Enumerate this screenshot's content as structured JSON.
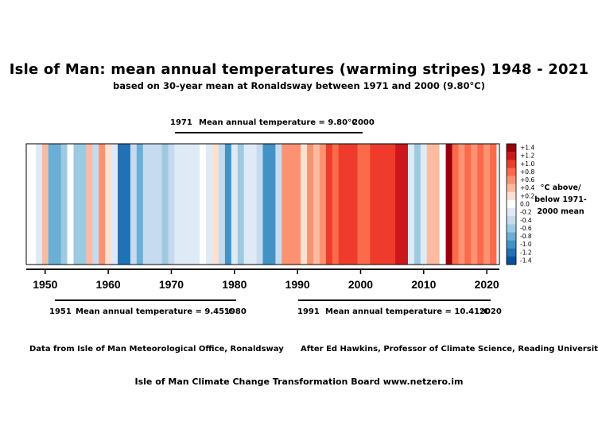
{
  "title": "Isle of Man: mean annual temperatures (warming stripes) 1948 - 2021",
  "subtitle": "based on 30-year mean at Ronaldsway between 1971 and 2000 (9.80°C)",
  "periods": [
    {
      "start": "1971",
      "label": "Mean annual temperature = 9.80°C",
      "end": "2000"
    },
    {
      "start": "1951",
      "label": "Mean annual temperature = 9.45°C",
      "end": "1980"
    },
    {
      "start": "1991",
      "label": "Mean annual temperature = 10.41°C",
      "end": "2020"
    }
  ],
  "footer": {
    "source": "Data from Isle of Man Meteorological Office, Ronaldsway",
    "credit": "After Ed Hawkins, Professor of Climate Science, Reading University",
    "board": "Isle of Man Climate Change Transformation Board     www.netzero.im"
  },
  "legend": {
    "caption": "°C above/ below 1971-2000 mean",
    "ticks": [
      "+1.4",
      "+1.2",
      "+1.0",
      "+0.8",
      "+0.6",
      "+0.4",
      "+0.2",
      "0.0",
      "-0.2",
      "-0.4",
      "-0.6",
      "-0.8",
      "-1.0",
      "-1.2",
      "-1.4"
    ],
    "colors": [
      "#99000d",
      "#cb181d",
      "#ef3b2c",
      "#fb6a4a",
      "#fc9272",
      "#fcbba1",
      "#fee0d2",
      "#ffffff",
      "#deebf7",
      "#c6dbef",
      "#9ecae1",
      "#6baed6",
      "#4292c6",
      "#2171b5",
      "#08519c"
    ]
  },
  "chart_data": {
    "type": "heatmap",
    "title": "Isle of Man: mean annual temperatures (warming stripes) 1948 - 2021",
    "xlabel": "",
    "ylabel": "",
    "x_ticks": [
      1950,
      1960,
      1970,
      1980,
      1990,
      2000,
      2010,
      2020
    ],
    "xlim": [
      1947,
      2022
    ],
    "color_scale": [
      -1.4,
      1.4
    ],
    "series": [
      {
        "years": [
          1948,
          1949,
          1950,
          1951,
          1952,
          1953,
          1954,
          1955,
          1956,
          1957,
          1958,
          1959,
          1960,
          1961,
          1962,
          1963,
          1964,
          1965,
          1966,
          1967,
          1968,
          1969,
          1970,
          1971,
          1972,
          1973,
          1974,
          1975,
          1976,
          1977,
          1978,
          1979,
          1980,
          1981,
          1982,
          1983,
          1984,
          1985,
          1986,
          1987,
          1988,
          1989,
          1990,
          1991,
          1992,
          1993,
          1994,
          1995,
          1996,
          1997,
          1998,
          1999,
          2000,
          2001,
          2002,
          2003,
          2004,
          2005,
          2006,
          2007,
          2008,
          2009,
          2010,
          2011,
          2012,
          2013,
          2014,
          2015,
          2016,
          2017,
          2018,
          2019,
          2020,
          2021
        ],
        "anomaly_c": [
          0.0,
          -0.2,
          0.4,
          -0.8,
          -0.8,
          -0.6,
          0.0,
          -0.6,
          -0.6,
          0.4,
          -0.4,
          0.6,
          0.2,
          -0.2,
          -1.2,
          -1.2,
          -0.4,
          -0.8,
          -0.4,
          -0.4,
          -0.4,
          -0.6,
          -0.4,
          -0.2,
          -0.2,
          -0.2,
          -0.2,
          0.0,
          -0.2,
          0.2,
          -0.4,
          -1.0,
          -0.2,
          -0.6,
          -0.2,
          -0.2,
          -0.4,
          -1.0,
          -1.0,
          -0.4,
          0.6,
          0.6,
          0.6,
          0.2,
          0.6,
          0.4,
          0.6,
          1.0,
          0.8,
          1.0,
          1.0,
          1.0,
          0.8,
          0.8,
          1.0,
          1.0,
          1.0,
          1.0,
          1.2,
          1.2,
          -0.2,
          -0.6,
          -0.2,
          0.4,
          0.4,
          0.0,
          1.4,
          0.8,
          0.6,
          0.8,
          0.6,
          0.8,
          0.6,
          0.8
        ]
      }
    ]
  }
}
